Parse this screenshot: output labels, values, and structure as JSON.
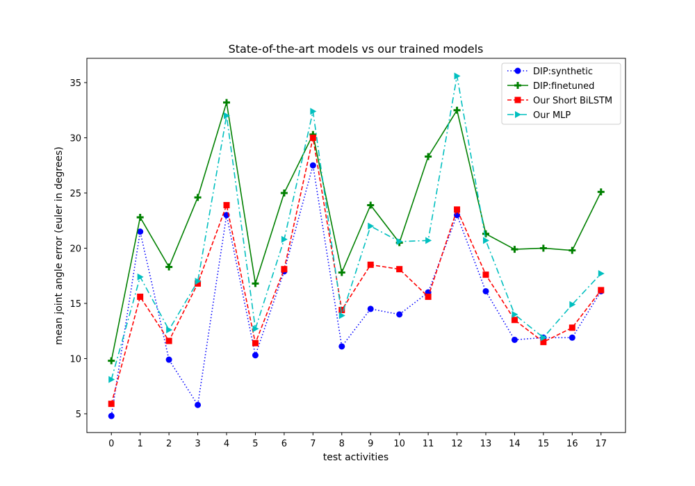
{
  "chart_data": {
    "type": "line",
    "title": "State-of-the-art models vs our trained models",
    "xlabel": "test activities",
    "ylabel": "mean joint angle error (euler in degrees)",
    "x": [
      0,
      1,
      2,
      3,
      4,
      5,
      6,
      7,
      8,
      9,
      10,
      11,
      12,
      13,
      14,
      15,
      16,
      17
    ],
    "xlim": [
      -0.85,
      17.85
    ],
    "ylim": [
      3.3,
      37.2
    ],
    "yticks": [
      5,
      10,
      15,
      20,
      25,
      30,
      35
    ],
    "grid": false,
    "legend_position": "top-right",
    "series": [
      {
        "name": "DIP:synthetic",
        "color": "#0000ff",
        "linestyle": "dotted",
        "marker": "circle",
        "values": [
          4.8,
          21.5,
          9.9,
          5.8,
          23.0,
          10.3,
          17.9,
          27.5,
          11.1,
          14.5,
          14.0,
          16.0,
          23.0,
          16.1,
          11.7,
          11.9,
          11.9,
          16.1
        ]
      },
      {
        "name": "DIP:finetuned",
        "color": "#008000",
        "linestyle": "solid",
        "marker": "plus",
        "values": [
          9.8,
          22.8,
          18.3,
          24.6,
          33.2,
          16.8,
          25.0,
          30.3,
          17.8,
          23.9,
          20.5,
          28.3,
          32.5,
          21.3,
          19.9,
          20.0,
          19.8,
          25.1
        ]
      },
      {
        "name": "Our Short BiLSTM",
        "color": "#ff0000",
        "linestyle": "dashed",
        "marker": "square",
        "values": [
          5.9,
          15.6,
          11.6,
          16.8,
          23.9,
          11.4,
          18.1,
          30.0,
          14.4,
          18.5,
          18.1,
          15.6,
          23.5,
          17.6,
          13.5,
          11.5,
          12.8,
          16.2
        ]
      },
      {
        "name": "Our MLP",
        "color": "#00bfbf",
        "linestyle": "dashdot",
        "marker": "triangle-right",
        "values": [
          8.1,
          17.4,
          12.6,
          17.0,
          32.0,
          12.7,
          20.8,
          32.4,
          13.9,
          22.0,
          20.6,
          20.7,
          35.6,
          20.7,
          14.0,
          11.9,
          14.9,
          17.7
        ]
      }
    ]
  }
}
